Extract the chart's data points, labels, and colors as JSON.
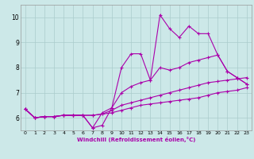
{
  "title": "",
  "xlabel": "Windchill (Refroidissement éolien,°C)",
  "ylabel": "",
  "background_color": "#cce8e8",
  "line_color": "#aa00aa",
  "grid_color": "#aacccc",
  "xlim": [
    -0.5,
    23.5
  ],
  "ylim": [
    5.5,
    10.5
  ],
  "xticks": [
    0,
    1,
    2,
    3,
    4,
    5,
    6,
    7,
    8,
    9,
    10,
    11,
    12,
    13,
    14,
    15,
    16,
    17,
    18,
    19,
    20,
    21,
    22,
    23
  ],
  "yticks": [
    6,
    7,
    8,
    9,
    10
  ],
  "series": [
    [
      6.35,
      6.0,
      6.05,
      6.05,
      6.1,
      6.1,
      6.1,
      5.6,
      5.7,
      6.4,
      8.0,
      8.55,
      8.55,
      7.5,
      10.1,
      9.55,
      9.2,
      9.65,
      9.35,
      9.35,
      8.5,
      7.85,
      7.6,
      7.35
    ],
    [
      6.35,
      6.0,
      6.05,
      6.05,
      6.1,
      6.1,
      6.1,
      5.6,
      6.2,
      6.4,
      7.0,
      7.25,
      7.4,
      7.5,
      8.0,
      7.9,
      8.0,
      8.2,
      8.3,
      8.4,
      8.5,
      7.85,
      7.6,
      7.35
    ],
    [
      6.35,
      6.0,
      6.05,
      6.05,
      6.1,
      6.1,
      6.1,
      6.1,
      6.15,
      6.3,
      6.5,
      6.6,
      6.7,
      6.8,
      6.9,
      7.0,
      7.1,
      7.2,
      7.3,
      7.4,
      7.45,
      7.5,
      7.55,
      7.6
    ],
    [
      6.35,
      6.0,
      6.05,
      6.05,
      6.1,
      6.1,
      6.1,
      6.1,
      6.15,
      6.2,
      6.3,
      6.4,
      6.5,
      6.55,
      6.6,
      6.65,
      6.7,
      6.75,
      6.8,
      6.9,
      7.0,
      7.05,
      7.1,
      7.2
    ]
  ]
}
